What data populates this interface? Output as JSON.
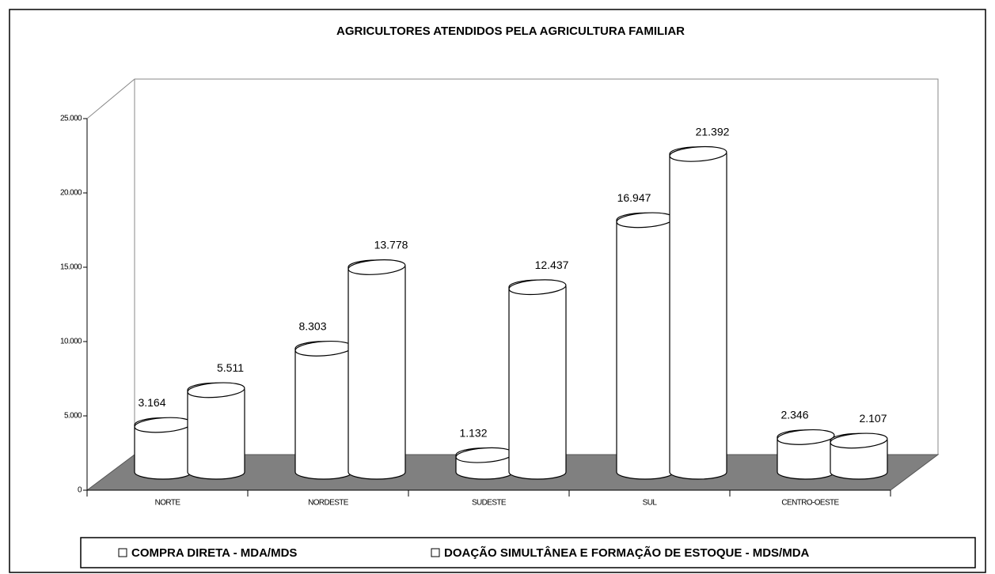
{
  "chart_data": {
    "type": "cylinder-bar",
    "title": "AGRICULTORES ATENDIDOS PELA AGRICULTURA FAMILIAR",
    "categories": [
      "NORTE",
      "NORDESTE",
      "SUDESTE",
      "SUL",
      "CENTRO-OESTE"
    ],
    "series": [
      {
        "name": "COMPRA DIRETA - MDA/MDS",
        "color": "#ffffff",
        "values": [
          3164,
          8303,
          1132,
          16947,
          2346
        ],
        "value_labels": [
          "3.164",
          "8.303",
          "1.132",
          "16.947",
          "2.346"
        ]
      },
      {
        "name": "DOAÇÃO SIMULTÂNEA E FORMAÇÃO DE ESTOQUE - MDS/MDA",
        "color": "#ffffff",
        "values": [
          5511,
          13778,
          12437,
          21392,
          2107
        ],
        "value_labels": [
          "5.511",
          "13.778",
          "12.437",
          "21.392",
          "2.107"
        ]
      }
    ],
    "ylim": [
      0,
      25000
    ],
    "yticks": [
      0,
      {
        "value": 5000,
        "label": "5.000"
      },
      {
        "value": 10000,
        "label": "10.000"
      },
      {
        "value": 15000,
        "label": "15.000"
      },
      {
        "value": 20000,
        "label": "20.000"
      },
      {
        "value": 25000,
        "label": "25.000"
      }
    ],
    "legend": "bottom"
  }
}
